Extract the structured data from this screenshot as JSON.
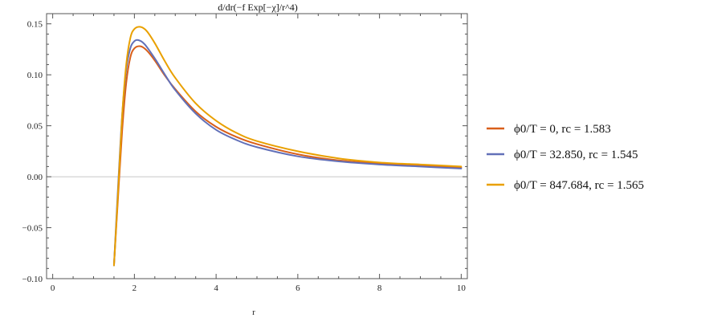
{
  "chart_data": {
    "type": "line",
    "title": "d/dr(−f Exp[−χ]/r^4)",
    "xlabel": "r",
    "ylabel": "",
    "xlim": [
      -0.15,
      10.15
    ],
    "ylim": [
      -0.1,
      0.16
    ],
    "x_ticks": [
      0,
      2,
      4,
      6,
      8,
      10
    ],
    "x_tick_labels": [
      "0",
      "2",
      "4",
      "6",
      "8",
      "10"
    ],
    "y_ticks": [
      -0.1,
      -0.05,
      0.0,
      0.05,
      0.1,
      0.15
    ],
    "y_tick_labels": [
      "−0.10",
      "−0.05",
      "0.00",
      "0.05",
      "0.10",
      "0.15"
    ],
    "grid": false,
    "zero_line": true,
    "legend_position": "right",
    "series": [
      {
        "name": "ϕ0/T = 0, rc = 1.583",
        "color": "#d95f1a",
        "x": [
          1.5,
          1.6,
          1.7,
          1.8,
          1.9,
          2.0,
          2.15,
          2.3,
          2.5,
          2.75,
          3.0,
          3.5,
          4.0,
          4.5,
          5.0,
          6.0,
          7.0,
          8.0,
          9.0,
          10.0
        ],
        "y": [
          -0.087,
          -0.02,
          0.045,
          0.092,
          0.117,
          0.126,
          0.128,
          0.124,
          0.114,
          0.099,
          0.086,
          0.064,
          0.049,
          0.039,
          0.032,
          0.022,
          0.016,
          0.013,
          0.011,
          0.009
        ]
      },
      {
        "name": "ϕ0/T = 32.850, rc = 1.545",
        "color": "#6270b8",
        "x": [
          1.5,
          1.6,
          1.7,
          1.8,
          1.9,
          2.0,
          2.1,
          2.25,
          2.5,
          2.75,
          3.0,
          3.5,
          4.0,
          4.5,
          5.0,
          6.0,
          7.0,
          8.0,
          9.0,
          10.0
        ],
        "y": [
          -0.087,
          -0.01,
          0.06,
          0.105,
          0.126,
          0.133,
          0.134,
          0.13,
          0.116,
          0.1,
          0.085,
          0.062,
          0.046,
          0.036,
          0.029,
          0.02,
          0.015,
          0.012,
          0.01,
          0.008
        ]
      },
      {
        "name": "ϕ0/T = 847.684, rc = 1.565",
        "color": "#e9a000",
        "x": [
          1.5,
          1.6,
          1.7,
          1.8,
          1.9,
          2.0,
          2.15,
          2.3,
          2.5,
          2.75,
          3.0,
          3.5,
          4.0,
          4.5,
          5.0,
          6.0,
          7.0,
          8.0,
          9.0,
          10.0
        ],
        "y": [
          -0.087,
          -0.015,
          0.06,
          0.11,
          0.136,
          0.145,
          0.147,
          0.143,
          0.131,
          0.113,
          0.097,
          0.072,
          0.055,
          0.043,
          0.035,
          0.025,
          0.018,
          0.014,
          0.012,
          0.01
        ]
      }
    ]
  }
}
